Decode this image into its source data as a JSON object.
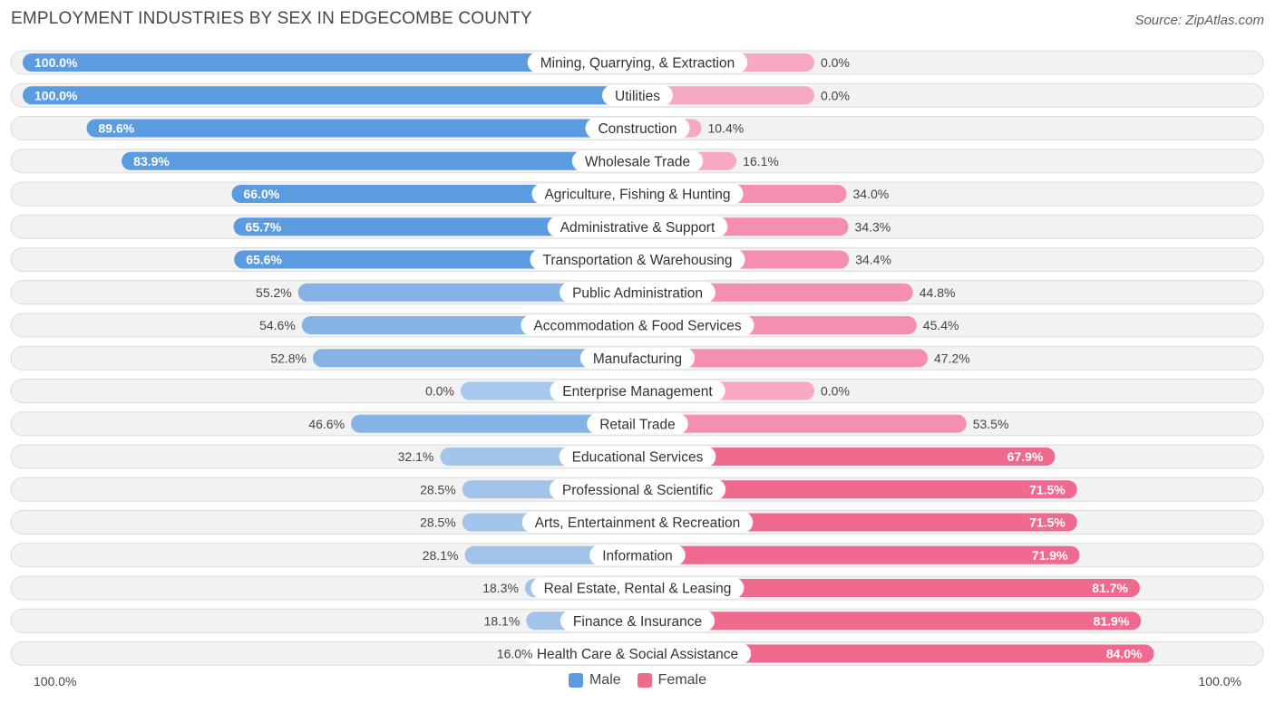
{
  "title": "EMPLOYMENT INDUSTRIES BY SEX IN EDGECOMBE COUNTY",
  "source": "Source: ZipAtlas.com",
  "axis": {
    "left_label": "100.0%",
    "right_label": "100.0%"
  },
  "legend": {
    "male_label": "Male",
    "female_label": "Female"
  },
  "colors": {
    "male_strong": "#5b9be0",
    "male_light": "#a7c8ec",
    "female_strong": "#f0698f",
    "female_light": "#f7a9c2",
    "row_bg": "#f2f2f2",
    "row_border": "#dcdcdc"
  },
  "chart_data": {
    "type": "bar",
    "orientation": "horizontal-diverging",
    "title": "EMPLOYMENT INDUSTRIES BY SEX IN EDGECOMBE COUNTY",
    "xlim": [
      -100,
      100
    ],
    "categories": [
      "Mining, Quarrying, & Extraction",
      "Utilities",
      "Construction",
      "Wholesale Trade",
      "Agriculture, Fishing & Hunting",
      "Administrative & Support",
      "Transportation & Warehousing",
      "Public Administration",
      "Accommodation & Food Services",
      "Manufacturing",
      "Enterprise Management",
      "Retail Trade",
      "Educational Services",
      "Professional & Scientific",
      "Arts, Entertainment & Recreation",
      "Information",
      "Real Estate, Rental & Leasing",
      "Finance & Insurance",
      "Health Care & Social Assistance"
    ],
    "series": [
      {
        "name": "Male",
        "values": [
          100.0,
          100.0,
          89.6,
          83.9,
          66.0,
          65.7,
          65.6,
          55.2,
          54.6,
          52.8,
          0.0,
          46.6,
          32.1,
          28.5,
          28.5,
          28.1,
          18.3,
          18.1,
          16.0
        ],
        "labels": [
          "100.0%",
          "100.0%",
          "89.6%",
          "83.9%",
          "66.0%",
          "65.7%",
          "65.6%",
          "55.2%",
          "54.6%",
          "52.8%",
          "0.0%",
          "46.6%",
          "32.1%",
          "28.5%",
          "28.5%",
          "28.1%",
          "18.3%",
          "18.1%",
          "16.0%"
        ]
      },
      {
        "name": "Female",
        "values": [
          0.0,
          0.0,
          10.4,
          16.1,
          34.0,
          34.3,
          34.4,
          44.8,
          45.4,
          47.2,
          0.0,
          53.5,
          67.9,
          71.5,
          71.5,
          71.9,
          81.7,
          81.9,
          84.0
        ],
        "labels": [
          "0.0%",
          "0.0%",
          "10.4%",
          "16.1%",
          "34.0%",
          "34.3%",
          "34.4%",
          "44.8%",
          "45.4%",
          "47.2%",
          "0.0%",
          "53.5%",
          "67.9%",
          "71.5%",
          "71.5%",
          "71.9%",
          "81.7%",
          "81.9%",
          "84.0%"
        ]
      }
    ]
  }
}
